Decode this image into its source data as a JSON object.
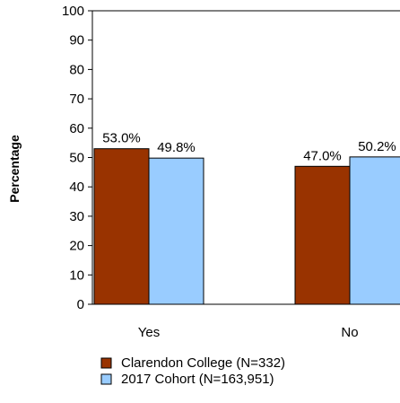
{
  "chart_data": {
    "type": "bar",
    "categories": [
      "Yes",
      "No"
    ],
    "series": [
      {
        "name": "Clarendon College (N=332)",
        "values": [
          53.0,
          47.0
        ],
        "labels": [
          "53.0%",
          "47.0%"
        ],
        "color": "#993300"
      },
      {
        "name": "2017 Cohort (N=163,951)",
        "values": [
          49.8,
          50.2
        ],
        "labels": [
          "49.8%",
          "50.2%"
        ],
        "color": "#99CCFF"
      }
    ],
    "ylabel": "Percentage",
    "ylim": [
      0,
      100
    ],
    "yticks": [
      0,
      10,
      20,
      30,
      40,
      50,
      60,
      70,
      80,
      90,
      100
    ],
    "legend_position": "bottom",
    "grid": false
  }
}
